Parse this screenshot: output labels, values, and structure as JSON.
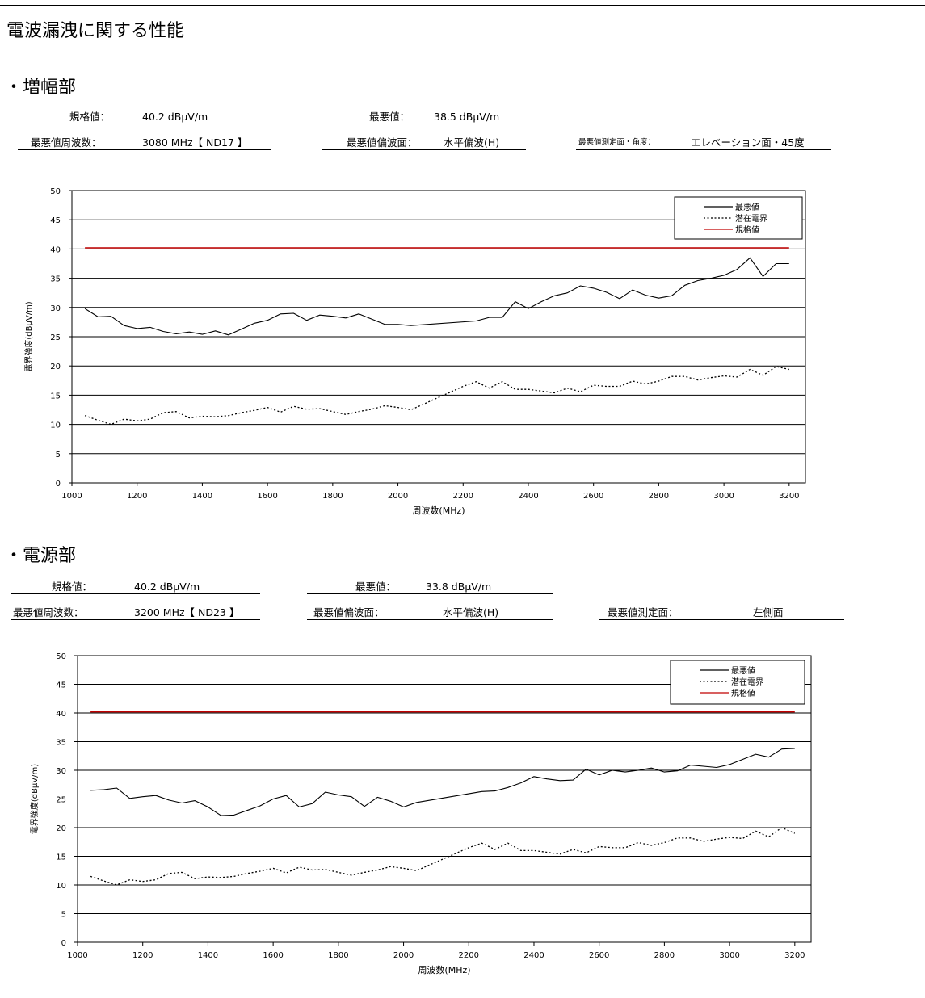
{
  "page_title": "電波漏洩に関する性能",
  "sections": [
    {
      "title": "・増幅部",
      "info": {
        "limit_label": "規格値：",
        "limit_value": "40.2 dBμV/m",
        "worst_label": "最悪値：",
        "worst_value": "38.5 dBμV/m",
        "freq_label": "最悪値周波数：",
        "freq_value": "3080 MHz【 ND17 】",
        "pol_label": "最悪値偏波面：",
        "pol_value": "水平偏波(H)",
        "plane_label": "最悪値測定面・角度：",
        "plane_value": "エレベーション面・45度"
      }
    },
    {
      "title": "・電源部",
      "info": {
        "limit_label": "規格値：",
        "limit_value": "40.2 dBμV/m",
        "worst_label": "最悪値：",
        "worst_value": "33.8 dBμV/m",
        "freq_label": "最悪値周波数：",
        "freq_value": "3200 MHz【 ND23 】",
        "pol_label": "最悪値偏波面：",
        "pol_value": "水平偏波(H)",
        "plane_label": "最悪値測定面：",
        "plane_value": "左側面"
      }
    }
  ],
  "colors": {
    "worst": "#000000",
    "potential": "#000000",
    "limit": "#c00000",
    "grid": "#000000"
  },
  "chart_data": [
    {
      "type": "line",
      "xlabel": "周波数(MHz)",
      "ylabel": "電界強度(dBμV/m)",
      "xlim": [
        1000,
        3250
      ],
      "ylim": [
        0,
        50
      ],
      "xticks": [
        1000,
        1200,
        1400,
        1600,
        1800,
        2000,
        2200,
        2400,
        2600,
        2800,
        3000,
        3200
      ],
      "yticks": [
        0,
        5,
        10,
        15,
        20,
        25,
        30,
        35,
        40,
        45,
        50
      ],
      "grid": "horizontal",
      "legend_position": "top-right",
      "series": [
        {
          "name": "最悪値",
          "style": "solid",
          "x": [
            1040,
            1080,
            1120,
            1160,
            1200,
            1240,
            1280,
            1320,
            1360,
            1400,
            1440,
            1480,
            1520,
            1560,
            1600,
            1640,
            1680,
            1720,
            1760,
            1800,
            1840,
            1880,
            1920,
            1960,
            2000,
            2040,
            2240,
            2280,
            2320,
            2360,
            2400,
            2440,
            2480,
            2520,
            2560,
            2600,
            2640,
            2680,
            2720,
            2760,
            2800,
            2840,
            2880,
            2920,
            2960,
            3000,
            3040,
            3080,
            3120,
            3160,
            3200
          ],
          "y": [
            29.8,
            28.4,
            28.5,
            26.9,
            26.4,
            26.6,
            25.9,
            25.5,
            25.8,
            25.4,
            26.0,
            25.3,
            26.3,
            27.3,
            27.8,
            28.9,
            29.0,
            27.8,
            28.7,
            28.5,
            28.2,
            28.9,
            28.0,
            27.1,
            27.1,
            26.9,
            27.7,
            28.3,
            28.3,
            31.0,
            29.8,
            31.0,
            32.0,
            32.5,
            33.7,
            33.3,
            32.6,
            31.5,
            33.0,
            32.1,
            31.6,
            32.0,
            33.8,
            34.6,
            35.0,
            35.5,
            36.5,
            38.5,
            35.3,
            37.5,
            37.5
          ]
        },
        {
          "name": "潜在電界",
          "style": "dotted",
          "x": [
            1040,
            1080,
            1120,
            1160,
            1200,
            1240,
            1280,
            1320,
            1360,
            1400,
            1440,
            1480,
            1520,
            1560,
            1600,
            1640,
            1680,
            1720,
            1760,
            1800,
            1840,
            1880,
            1920,
            1960,
            2000,
            2040,
            2080,
            2120,
            2160,
            2200,
            2240,
            2280,
            2320,
            2360,
            2400,
            2440,
            2480,
            2520,
            2560,
            2600,
            2640,
            2680,
            2720,
            2760,
            2800,
            2840,
            2880,
            2920,
            2960,
            3000,
            3040,
            3080,
            3120,
            3160,
            3200
          ],
          "y": [
            11.5,
            10.7,
            10.0,
            10.9,
            10.6,
            10.9,
            12.0,
            12.2,
            11.1,
            11.4,
            11.3,
            11.5,
            12.0,
            12.4,
            12.9,
            12.1,
            13.1,
            12.6,
            12.7,
            12.2,
            11.7,
            12.2,
            12.6,
            13.2,
            12.9,
            12.5,
            13.5,
            14.5,
            15.5,
            16.5,
            17.3,
            16.2,
            17.3,
            16.0,
            16.0,
            15.7,
            15.4,
            16.2,
            15.6,
            16.7,
            16.5,
            16.5,
            17.4,
            16.9,
            17.4,
            18.2,
            18.2,
            17.6,
            18.0,
            18.3,
            18.1,
            19.4,
            18.4,
            19.9,
            19.4
          ]
        },
        {
          "name": "規格値",
          "style": "solid-red",
          "x": [
            1040,
            3200
          ],
          "y": [
            40.2,
            40.2
          ]
        }
      ]
    },
    {
      "type": "line",
      "xlabel": "周波数(MHz)",
      "ylabel": "電界強度(dBμV/m)",
      "xlim": [
        1000,
        3250
      ],
      "ylim": [
        0,
        50
      ],
      "xticks": [
        1000,
        1200,
        1400,
        1600,
        1800,
        2000,
        2200,
        2400,
        2600,
        2800,
        3000,
        3200
      ],
      "yticks": [
        0,
        5,
        10,
        15,
        20,
        25,
        30,
        35,
        40,
        45,
        50
      ],
      "grid": "horizontal",
      "legend_position": "top-right",
      "series": [
        {
          "name": "最悪値",
          "style": "solid",
          "x": [
            1040,
            1080,
            1120,
            1160,
            1200,
            1240,
            1280,
            1320,
            1360,
            1400,
            1440,
            1480,
            1520,
            1560,
            1600,
            1640,
            1680,
            1720,
            1760,
            1800,
            1840,
            1880,
            1920,
            1960,
            2000,
            2040,
            2240,
            2280,
            2320,
            2360,
            2400,
            2440,
            2480,
            2520,
            2560,
            2600,
            2640,
            2680,
            2720,
            2760,
            2800,
            2840,
            2880,
            2920,
            2960,
            3000,
            3040,
            3080,
            3120,
            3160,
            3200
          ],
          "y": [
            26.5,
            26.6,
            26.9,
            25.1,
            25.4,
            25.6,
            24.8,
            24.3,
            24.7,
            23.6,
            22.1,
            22.2,
            23.0,
            23.8,
            25.0,
            25.6,
            23.6,
            24.2,
            26.2,
            25.7,
            25.4,
            23.7,
            25.3,
            24.6,
            23.6,
            24.4,
            26.3,
            26.4,
            27.0,
            27.8,
            28.9,
            28.5,
            28.2,
            28.3,
            30.2,
            29.2,
            30.0,
            29.7,
            30.0,
            30.4,
            29.7,
            29.9,
            30.9,
            30.7,
            30.5,
            31.0,
            31.9,
            32.8,
            32.3,
            33.7,
            33.8
          ]
        },
        {
          "name": "潜在電界",
          "style": "dotted",
          "x": [
            1040,
            1080,
            1120,
            1160,
            1200,
            1240,
            1280,
            1320,
            1360,
            1400,
            1440,
            1480,
            1520,
            1560,
            1600,
            1640,
            1680,
            1720,
            1760,
            1800,
            1840,
            1880,
            1920,
            1960,
            2000,
            2040,
            2080,
            2120,
            2160,
            2200,
            2240,
            2280,
            2320,
            2360,
            2400,
            2440,
            2480,
            2520,
            2560,
            2600,
            2640,
            2680,
            2720,
            2760,
            2800,
            2840,
            2880,
            2920,
            2960,
            3000,
            3040,
            3080,
            3120,
            3160,
            3200
          ],
          "y": [
            11.5,
            10.7,
            10.0,
            10.9,
            10.6,
            10.9,
            12.0,
            12.2,
            11.1,
            11.4,
            11.3,
            11.5,
            12.0,
            12.4,
            12.9,
            12.1,
            13.1,
            12.6,
            12.7,
            12.2,
            11.7,
            12.2,
            12.6,
            13.2,
            12.9,
            12.5,
            13.5,
            14.5,
            15.5,
            16.5,
            17.3,
            16.2,
            17.3,
            16.0,
            16.0,
            15.7,
            15.4,
            16.2,
            15.6,
            16.7,
            16.5,
            16.5,
            17.4,
            16.9,
            17.4,
            18.2,
            18.2,
            17.6,
            18.0,
            18.3,
            18.1,
            19.4,
            18.4,
            20.0,
            19.0
          ]
        },
        {
          "name": "規格値",
          "style": "solid-red",
          "x": [
            1040,
            3200
          ],
          "y": [
            40.2,
            40.2
          ]
        }
      ]
    }
  ]
}
